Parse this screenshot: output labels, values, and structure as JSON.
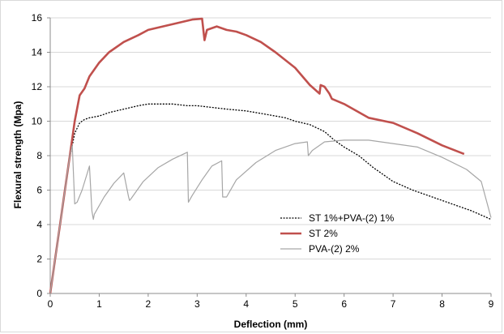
{
  "chart_data": {
    "type": "line",
    "title": "",
    "xlabel": "Deflection (mm)",
    "ylabel": "Flexural strength (Mpa)",
    "xlim": [
      0,
      9
    ],
    "ylim": [
      0,
      16
    ],
    "x_ticks": [
      0,
      1,
      2,
      3,
      4,
      5,
      6,
      7,
      8,
      9
    ],
    "y_ticks": [
      0,
      2,
      4,
      6,
      8,
      10,
      12,
      14,
      16
    ],
    "grid": "horizontal",
    "legend_position": "lower-center",
    "series": [
      {
        "name": "ST 1%+PVA-(2) 1%",
        "color": "#000000",
        "style": "dotted",
        "x": [
          0,
          0.1,
          0.2,
          0.3,
          0.4,
          0.5,
          0.6,
          0.7,
          0.8,
          1.0,
          1.2,
          1.5,
          1.8,
          2.0,
          2.2,
          2.5,
          2.8,
          3.0,
          3.3,
          3.6,
          4.0,
          4.4,
          4.8,
          5.0,
          5.3,
          5.6,
          5.8,
          6.0,
          6.3,
          6.6,
          7.0,
          7.4,
          7.8,
          8.2,
          8.6,
          9.0
        ],
        "y": [
          0,
          1.9,
          3.9,
          5.9,
          7.9,
          9.3,
          9.9,
          10.1,
          10.2,
          10.3,
          10.5,
          10.7,
          10.9,
          11.0,
          11.0,
          11.0,
          10.9,
          10.9,
          10.8,
          10.7,
          10.6,
          10.4,
          10.2,
          10.0,
          9.8,
          9.4,
          8.9,
          8.5,
          8.0,
          7.3,
          6.5,
          6.0,
          5.6,
          5.2,
          4.8,
          4.3
        ]
      },
      {
        "name": "ST 2%",
        "color": "#c0504d",
        "style": "solid",
        "x": [
          0,
          0.1,
          0.2,
          0.3,
          0.4,
          0.5,
          0.6,
          0.7,
          0.8,
          0.9,
          1.0,
          1.2,
          1.5,
          1.8,
          2.0,
          2.3,
          2.6,
          2.9,
          3.1,
          3.15,
          3.2,
          3.4,
          3.6,
          3.8,
          4.0,
          4.3,
          4.6,
          5.0,
          5.3,
          5.5,
          5.52,
          5.6,
          5.7,
          5.75,
          6.0,
          6.5,
          7.0,
          7.5,
          8.0,
          8.45
        ],
        "y": [
          0,
          2.0,
          4.0,
          6.0,
          8.0,
          10.0,
          11.5,
          11.9,
          12.6,
          13.0,
          13.4,
          14.0,
          14.6,
          15.0,
          15.3,
          15.5,
          15.7,
          15.9,
          15.95,
          14.7,
          15.3,
          15.5,
          15.3,
          15.2,
          15.0,
          14.6,
          14.0,
          13.1,
          12.1,
          11.6,
          12.1,
          12.0,
          11.6,
          11.3,
          11.0,
          10.2,
          9.9,
          9.3,
          8.6,
          8.1
        ]
      },
      {
        "name": "PVA-(2) 2%",
        "color": "#a6a6a6",
        "style": "solid",
        "x": [
          0,
          0.1,
          0.2,
          0.3,
          0.4,
          0.45,
          0.5,
          0.55,
          0.65,
          0.8,
          0.85,
          0.88,
          0.9,
          1.1,
          1.3,
          1.5,
          1.6,
          1.62,
          1.65,
          1.9,
          2.2,
          2.5,
          2.8,
          2.82,
          2.9,
          3.1,
          3.3,
          3.5,
          3.52,
          3.6,
          3.8,
          4.2,
          4.6,
          5.0,
          5.25,
          5.27,
          5.35,
          5.6,
          6.0,
          6.5,
          7.0,
          7.5,
          8.0,
          8.5,
          8.8,
          9.0
        ],
        "y": [
          0,
          2.0,
          4.0,
          6.0,
          8.0,
          8.6,
          5.2,
          5.3,
          6.0,
          7.4,
          4.8,
          4.3,
          4.6,
          5.6,
          6.4,
          7.0,
          5.6,
          5.4,
          5.5,
          6.5,
          7.3,
          7.8,
          8.2,
          5.3,
          5.7,
          6.6,
          7.4,
          7.7,
          5.6,
          5.6,
          6.6,
          7.6,
          8.3,
          8.7,
          8.8,
          8.0,
          8.3,
          8.8,
          8.9,
          8.9,
          8.7,
          8.5,
          7.9,
          7.2,
          6.5,
          4.4
        ]
      }
    ]
  }
}
